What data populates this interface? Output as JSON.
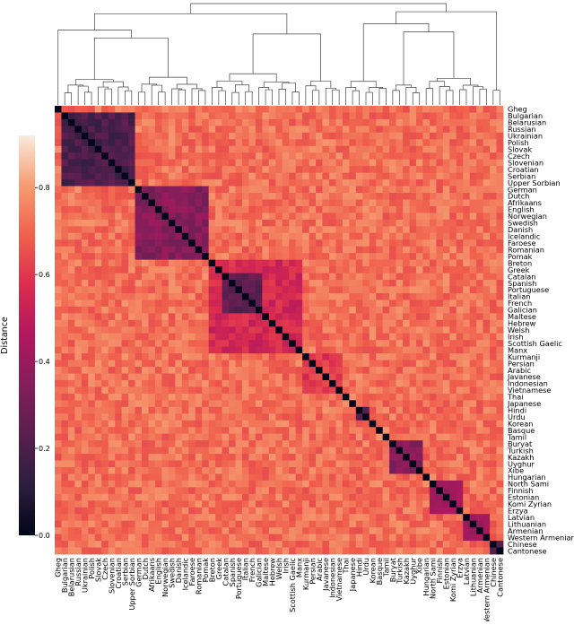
{
  "chart_data": {
    "type": "heatmap",
    "title": "",
    "xlabel": "",
    "ylabel": "",
    "colorbar_label": "Distance",
    "colorbar_ticks": [
      "0.0",
      "0.2",
      "0.4",
      "0.6",
      "0.8"
    ],
    "colorbar_range": [
      0,
      0.92
    ],
    "colormap": "rocket",
    "dendrogram": "top",
    "languages": [
      "Gheg",
      "Bulgarian",
      "Belarusian",
      "Russian",
      "Ukrainian",
      "Polish",
      "Slovak",
      "Czech",
      "Slovenian",
      "Croatian",
      "Serbian",
      "Upper Sorbian",
      "German",
      "Dutch",
      "Afrikaans",
      "English",
      "Norwegian",
      "Swedish",
      "Danish",
      "Icelandic",
      "Faroese",
      "Romanian",
      "Pomak",
      "Breton",
      "Greek",
      "Catalan",
      "Spanish",
      "Portuguese",
      "Italian",
      "French",
      "Galician",
      "Maltese",
      "Hebrew",
      "Welsh",
      "Irish",
      "Scottish Gaelic",
      "Manx",
      "Kurmanji",
      "Persian",
      "Arabic",
      "Javanese",
      "Indonesian",
      "Vietnamese",
      "Thai",
      "Japanese",
      "Hindi",
      "Urdu",
      "Korean",
      "Basque",
      "Tamil",
      "Buryat",
      "Turkish",
      "Kazakh",
      "Uyghur",
      "Xibe",
      "Hungarian",
      "North Sami",
      "Finnish",
      "Estonian",
      "Komi Zyrian",
      "Erzya",
      "Latvian",
      "Lithuanian",
      "Armenian",
      "Western Armenian",
      "Chinese",
      "Cantonese"
    ],
    "clusters": [
      {
        "range": [
          1,
          11
        ],
        "distance": 0.2
      },
      {
        "range": [
          12,
          22
        ],
        "distance": 0.35
      },
      {
        "range": [
          25,
          30
        ],
        "distance": 0.25
      },
      {
        "range": [
          23,
          36
        ],
        "distance": 0.55
      },
      {
        "range": [
          37,
          42
        ],
        "distance": 0.6
      },
      {
        "range": [
          45,
          46
        ],
        "distance": 0.2
      },
      {
        "range": [
          50,
          54
        ],
        "distance": 0.35
      },
      {
        "range": [
          56,
          60
        ],
        "distance": 0.4
      },
      {
        "range": [
          61,
          64
        ],
        "distance": 0.4
      },
      {
        "range": [
          65,
          66
        ],
        "distance": 0.2
      }
    ],
    "base_distance": 0.72
  }
}
